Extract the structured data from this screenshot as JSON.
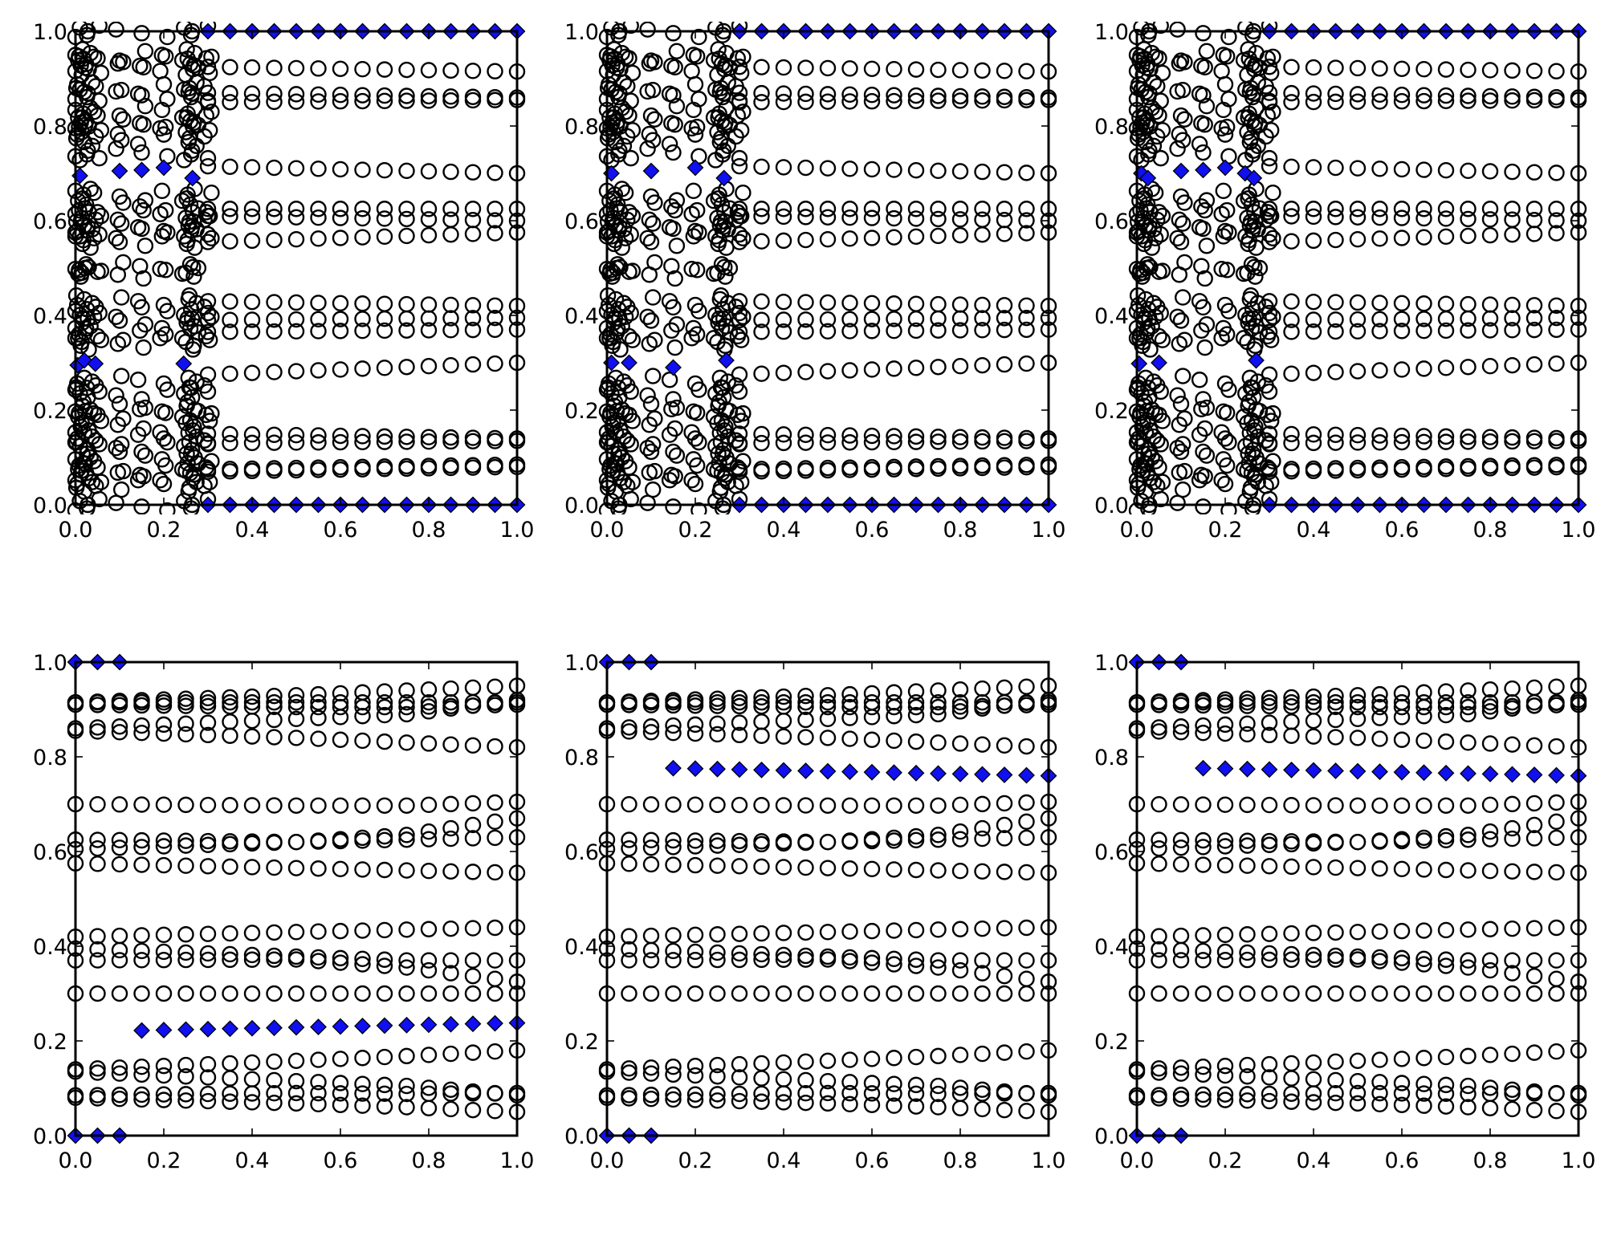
{
  "chart_data": {
    "type": "scatter",
    "layout": "2 rows x 3 columns",
    "shared": {
      "xlim": [
        0,
        1
      ],
      "ylim": [
        0,
        1
      ],
      "xticks": [
        "0.0",
        "0.2",
        "0.4",
        "0.6",
        "0.8",
        "1.0"
      ],
      "yticks": [
        "0.0",
        "0.2",
        "0.4",
        "0.6",
        "0.8",
        "1.0"
      ],
      "circle_color": "#000000",
      "diamond_color": "#1010f0"
    },
    "top_row_circles": {
      "row_x_range": [
        0.3,
        1.0
      ],
      "row_x_step": 0.05,
      "rows": [
        {
          "y_start": 0.925,
          "y_end": 0.915
        },
        {
          "y_start": 0.87,
          "y_end": 0.86
        },
        {
          "y_start": 0.85,
          "y_end": 0.855
        },
        {
          "y_start": 0.715,
          "y_end": 0.7
        },
        {
          "y_start": 0.625,
          "y_end": 0.625
        },
        {
          "y_start": 0.61,
          "y_end": 0.6
        },
        {
          "y_start": 0.555,
          "y_end": 0.575
        },
        {
          "y_start": 0.43,
          "y_end": 0.42
        },
        {
          "y_start": 0.39,
          "y_end": 0.395
        },
        {
          "y_start": 0.365,
          "y_end": 0.37
        },
        {
          "y_start": 0.275,
          "y_end": 0.3
        },
        {
          "y_start": 0.15,
          "y_end": 0.14
        },
        {
          "y_start": 0.13,
          "y_end": 0.135
        },
        {
          "y_start": 0.075,
          "y_end": 0.085
        },
        {
          "y_start": 0.07,
          "y_end": 0.08
        }
      ],
      "cluster_x": [
        0.0,
        0.01,
        0.02,
        0.03,
        0.05,
        0.1,
        0.15,
        0.2,
        0.25,
        0.26,
        0.27,
        0.3
      ],
      "cluster_y": [
        0.0,
        0.04,
        0.06,
        0.075,
        0.1,
        0.12,
        0.14,
        0.165,
        0.19,
        0.205,
        0.235,
        0.26,
        0.34,
        0.36,
        0.385,
        0.405,
        0.43,
        0.49,
        0.5,
        0.555,
        0.575,
        0.59,
        0.61,
        0.63,
        0.655,
        0.74,
        0.77,
        0.795,
        0.81,
        0.83,
        0.865,
        0.88,
        0.92,
        0.935,
        0.95,
        1.0
      ]
    },
    "bottom_row_circles": {
      "x_range": [
        0.0,
        1.0
      ],
      "x_step": 0.05,
      "series_keyframes_x": [
        0.0,
        0.5,
        0.75,
        1.0
      ],
      "series": [
        {
          "y": [
            0.915,
            0.93,
            0.94,
            0.95
          ]
        },
        {
          "y": [
            0.915,
            0.915,
            0.915,
            0.915
          ]
        },
        {
          "y": [
            0.91,
            0.905,
            0.905,
            0.91
          ]
        },
        {
          "y": [
            0.86,
            0.88,
            0.89,
            0.92
          ]
        },
        {
          "y": [
            0.855,
            0.84,
            0.83,
            0.82
          ]
        },
        {
          "y": [
            0.7,
            0.697,
            0.697,
            0.705
          ]
        },
        {
          "y": [
            0.625,
            0.62,
            0.635,
            0.67
          ]
        },
        {
          "y": [
            0.605,
            0.62,
            0.625,
            0.63
          ]
        },
        {
          "y": [
            0.575,
            0.565,
            0.56,
            0.555
          ]
        },
        {
          "y": [
            0.42,
            0.43,
            0.435,
            0.44
          ]
        },
        {
          "y": [
            0.395,
            0.378,
            0.37,
            0.37
          ]
        },
        {
          "y": [
            0.37,
            0.372,
            0.355,
            0.325
          ]
        },
        {
          "y": [
            0.3,
            0.3,
            0.3,
            0.3
          ]
        },
        {
          "y": [
            0.14,
            0.158,
            0.168,
            0.18
          ]
        },
        {
          "y": [
            0.135,
            0.115,
            0.105,
            0.085
          ]
        },
        {
          "y": [
            0.085,
            0.09,
            0.088,
            0.09
          ]
        },
        {
          "y": [
            0.08,
            0.068,
            0.06,
            0.05
          ]
        }
      ]
    },
    "panels": [
      {
        "row": 0,
        "col": 0,
        "circles": "top_row_circles",
        "diamonds": [
          [
            0.01,
            0.695
          ],
          [
            0.1,
            0.705
          ],
          [
            0.15,
            0.707
          ],
          [
            0.2,
            0.712
          ],
          [
            0.265,
            0.69
          ],
          [
            0.005,
            0.295
          ],
          [
            0.02,
            0.305
          ],
          [
            0.045,
            0.298
          ],
          [
            0.245,
            0.298
          ]
        ],
        "diamond_edge_rows": {
          "x_range": [
            0.3,
            1.0
          ],
          "x_step": 0.05,
          "y": [
            0.0,
            1.0
          ]
        }
      },
      {
        "row": 0,
        "col": 1,
        "circles": "top_row_circles",
        "diamonds": [
          [
            0.01,
            0.7
          ],
          [
            0.1,
            0.705
          ],
          [
            0.2,
            0.712
          ],
          [
            0.265,
            0.69
          ],
          [
            0.01,
            0.3
          ],
          [
            0.05,
            0.3
          ],
          [
            0.15,
            0.29
          ],
          [
            0.27,
            0.305
          ]
        ],
        "diamond_edge_rows": {
          "x_range": [
            0.3,
            1.0
          ],
          "x_step": 0.05,
          "y": [
            0.0,
            1.0
          ]
        }
      },
      {
        "row": 0,
        "col": 2,
        "circles": "top_row_circles",
        "diamonds": [
          [
            0.01,
            0.7
          ],
          [
            0.025,
            0.69
          ],
          [
            0.1,
            0.705
          ],
          [
            0.15,
            0.707
          ],
          [
            0.2,
            0.712
          ],
          [
            0.245,
            0.7
          ],
          [
            0.265,
            0.69
          ],
          [
            0.005,
            0.298
          ],
          [
            0.05,
            0.3
          ],
          [
            0.27,
            0.305
          ]
        ],
        "diamond_edge_rows": {
          "x_range": [
            0.3,
            1.0
          ],
          "x_step": 0.05,
          "y": [
            0.0,
            1.0
          ]
        }
      },
      {
        "row": 1,
        "col": 0,
        "circles": "bottom_row_circles",
        "diamonds": [
          [
            0.0,
            1.0
          ],
          [
            0.05,
            1.0
          ],
          [
            0.1,
            1.0
          ],
          [
            0.0,
            0.0
          ],
          [
            0.05,
            0.0
          ],
          [
            0.1,
            0.0
          ]
        ],
        "diamond_line": {
          "x_range": [
            0.15,
            1.0
          ],
          "x_step": 0.05,
          "y_start": 0.222,
          "y_end": 0.238
        }
      },
      {
        "row": 1,
        "col": 1,
        "circles": "bottom_row_circles",
        "diamonds": [
          [
            0.0,
            1.0
          ],
          [
            0.05,
            1.0
          ],
          [
            0.1,
            1.0
          ],
          [
            0.0,
            0.0
          ],
          [
            0.05,
            0.0
          ],
          [
            0.1,
            0.0
          ]
        ],
        "diamond_line": {
          "x_range": [
            0.15,
            1.0
          ],
          "x_step": 0.05,
          "y_start": 0.776,
          "y_end": 0.76
        }
      },
      {
        "row": 1,
        "col": 2,
        "circles": "bottom_row_circles",
        "diamonds": [
          [
            0.0,
            1.0
          ],
          [
            0.05,
            1.0
          ],
          [
            0.1,
            1.0
          ],
          [
            0.0,
            0.0
          ],
          [
            0.05,
            0.0
          ],
          [
            0.1,
            0.0
          ]
        ],
        "diamond_line": {
          "x_range": [
            0.15,
            1.0
          ],
          "x_step": 0.05,
          "y_start": 0.776,
          "y_end": 0.76
        }
      }
    ]
  }
}
